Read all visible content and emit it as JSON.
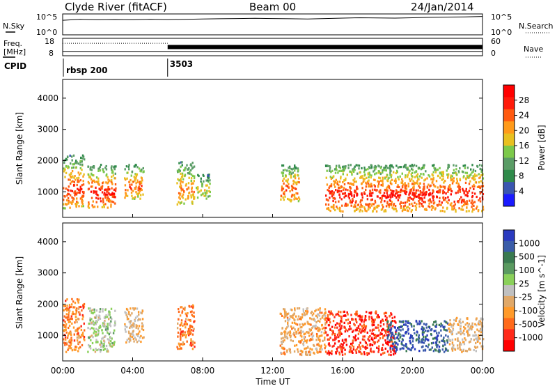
{
  "header": {
    "station": "Clyde River (fitACF)",
    "beam": "Beam 00",
    "date": "24/Jan/2014"
  },
  "sky_panel": {
    "left_label": "N.Sky",
    "right_label": "N.Search",
    "left_ticks": [
      "10^5",
      "10^0"
    ],
    "right_ticks": [
      "10^5",
      "10^0"
    ]
  },
  "freq_panel": {
    "left_label_1": "Freq.",
    "left_label_2": "[MHz]",
    "right_label": "Nave",
    "left_ticks": [
      "18",
      "8"
    ],
    "right_ticks": [
      "60",
      "0"
    ]
  },
  "cpid": {
    "label": "CPID",
    "segments": [
      {
        "label": "rbsp 200",
        "start_hour": 0.0
      },
      {
        "label": "3503",
        "start_hour": 6.0
      }
    ]
  },
  "x_axis": {
    "label": "Time UT",
    "ticks": [
      "00:00",
      "04:00",
      "08:00",
      "12:00",
      "16:00",
      "20:00",
      "00:00"
    ]
  },
  "y_axis": {
    "label": "Slant Range [km]",
    "ticks": [
      "1000",
      "2000",
      "3000",
      "4000"
    ]
  },
  "power_colorbar": {
    "label": "Power [dB]",
    "ticks": [
      "4",
      "8",
      "12",
      "16",
      "20",
      "24",
      "28"
    ]
  },
  "velocity_colorbar": {
    "label": "Velocity [m s^-1]",
    "ticks": [
      "1000",
      "500",
      "100",
      "25",
      "-25",
      "-100",
      "-500",
      "-1000"
    ]
  },
  "colors": {
    "power_scale": [
      "#1a1aff",
      "#3a56b0",
      "#2f8a4a",
      "#5a9c66",
      "#7cc94a",
      "#e8c020",
      "#ff9a1a",
      "#ff5a10",
      "#ff1a0a",
      "#ff0000"
    ],
    "velocity_scale": [
      "#2a3abf",
      "#3a5ca8",
      "#3a7a50",
      "#5a9a60",
      "#8ad05a",
      "#c0c0c0",
      "#e0a868",
      "#ff9a2a",
      "#ff6a1a",
      "#ff2a1a",
      "#ff0000"
    ]
  },
  "chart_data": [
    {
      "type": "line",
      "title": "N.Sky / N.Search",
      "x": [
        0,
        1,
        2,
        3,
        4,
        5,
        6,
        7,
        8,
        9,
        10,
        11,
        12,
        13,
        14,
        15,
        16,
        17,
        18,
        19,
        20,
        21,
        22,
        23,
        24
      ],
      "series": [
        {
          "name": "N.Sky",
          "values": [
            3000,
            5000,
            4000,
            4500,
            4000,
            5000,
            4500,
            5000,
            6000,
            7000,
            8000,
            9000,
            8000,
            7000,
            6000,
            8000,
            10000,
            12000,
            11000,
            10000,
            12000,
            15000,
            18000,
            20000,
            25000
          ]
        }
      ],
      "ylim": [
        1,
        100000
      ],
      "yscale": "log"
    },
    {
      "type": "line",
      "title": "Freq. / Nave",
      "x": [
        0,
        6,
        6,
        24
      ],
      "series": [
        {
          "name": "Freq.",
          "values": [
            10.5,
            10.5,
            10.5,
            10.5
          ]
        },
        {
          "name": "Nave",
          "values": [
            43,
            43,
            30,
            30
          ]
        }
      ],
      "ylim": [
        8,
        18
      ]
    },
    {
      "type": "heatmap",
      "quantity": "Power [dB]",
      "x_hours": [
        0,
        24
      ],
      "y_km": [
        180,
        4600
      ],
      "clim": [
        0,
        32
      ],
      "regions": [
        {
          "t": [
            0.0,
            1.2
          ],
          "r": [
            500,
            2200
          ],
          "peak": 28
        },
        {
          "t": [
            1.4,
            3.0
          ],
          "r": [
            500,
            1900
          ],
          "peak": 30
        },
        {
          "t": [
            3.5,
            4.6
          ],
          "r": [
            800,
            1900
          ],
          "peak": 26
        },
        {
          "t": [
            6.5,
            7.5
          ],
          "r": [
            600,
            2000
          ],
          "peak": 24
        },
        {
          "t": [
            7.6,
            8.4
          ],
          "r": [
            800,
            1600
          ],
          "peak": 18
        },
        {
          "t": [
            12.4,
            13.5
          ],
          "r": [
            700,
            1900
          ],
          "peak": 26
        },
        {
          "t": [
            15.0,
            24.0
          ],
          "r": [
            400,
            1900
          ],
          "peak": 30
        }
      ]
    },
    {
      "type": "heatmap",
      "quantity": "Velocity [m s^-1]",
      "x_hours": [
        0,
        24
      ],
      "y_km": [
        180,
        4600
      ],
      "clim": [
        -1000,
        1000
      ],
      "regions": [
        {
          "t": [
            0.0,
            1.2
          ],
          "r": [
            500,
            2200
          ],
          "v": -500
        },
        {
          "t": [
            1.4,
            3.0
          ],
          "r": [
            500,
            1900
          ],
          "v": 100
        },
        {
          "t": [
            3.5,
            4.6
          ],
          "r": [
            800,
            1900
          ],
          "v": -200
        },
        {
          "t": [
            6.5,
            7.5
          ],
          "r": [
            600,
            2000
          ],
          "v": -500
        },
        {
          "t": [
            12.4,
            15.0
          ],
          "r": [
            400,
            1900
          ],
          "v": -300
        },
        {
          "t": [
            15.0,
            19.0
          ],
          "r": [
            400,
            1800
          ],
          "v": -800
        },
        {
          "t": [
            18.5,
            22.0
          ],
          "r": [
            500,
            1500
          ],
          "v": 800
        },
        {
          "t": [
            22.0,
            24.0
          ],
          "r": [
            500,
            1600
          ],
          "v": -200
        }
      ]
    }
  ]
}
